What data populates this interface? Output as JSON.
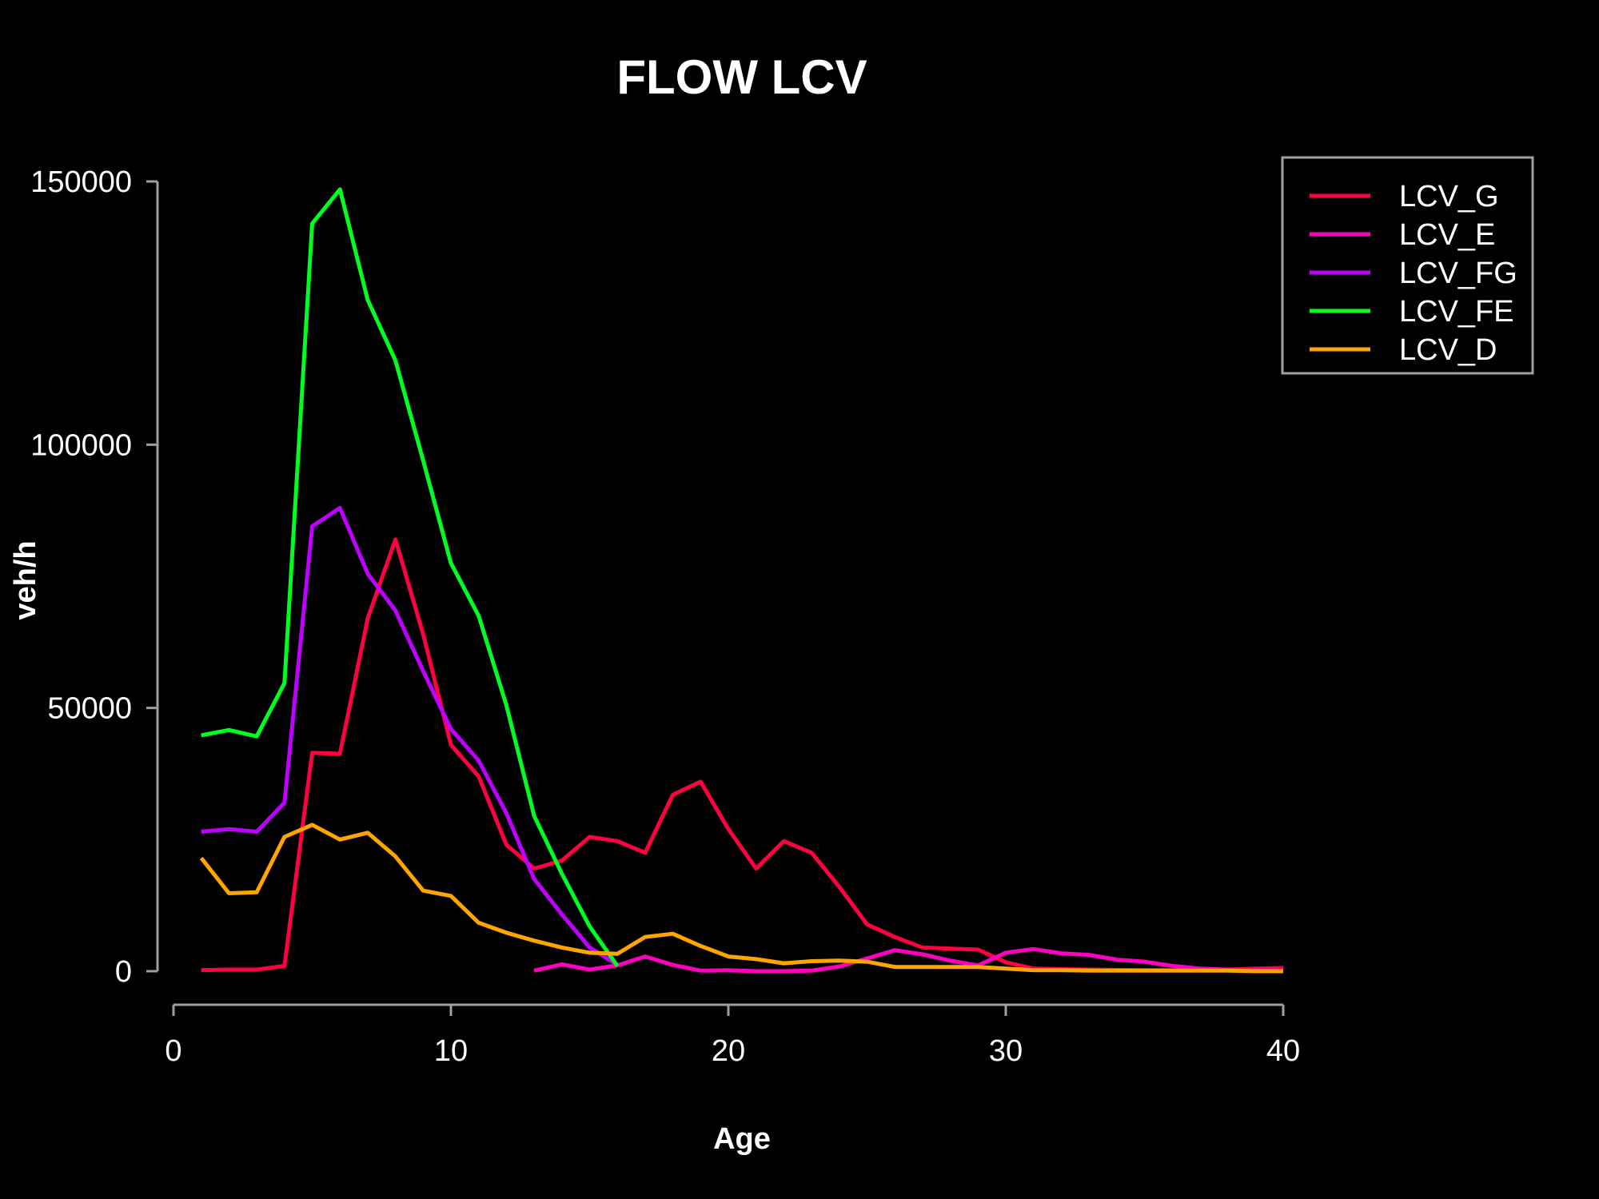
{
  "chart_data": {
    "type": "line",
    "title": "FLOW LCV",
    "xlabel": "Age",
    "ylabel": "veh/h",
    "xlim": [
      0,
      40
    ],
    "ylim": [
      0,
      150000
    ],
    "x_ticks": [
      "0",
      "10",
      "20",
      "30",
      "40"
    ],
    "y_ticks": [
      "0",
      "50000",
      "100000",
      "150000"
    ],
    "grid": false,
    "legend_position": "top-right",
    "background": "#000000",
    "series": [
      {
        "name": "LCV_G",
        "color": "#ff0040",
        "x": [
          1,
          2,
          3,
          4,
          5,
          6,
          7,
          8,
          9,
          10,
          11,
          12,
          13,
          14,
          15,
          16,
          17,
          18,
          19,
          20,
          21,
          22,
          23,
          24,
          25,
          26,
          27,
          28,
          29,
          30,
          31,
          32,
          33,
          34,
          35,
          36,
          37,
          38,
          39,
          40
        ],
        "y": [
          200,
          300,
          300,
          1000,
          41500,
          41300,
          67000,
          82000,
          64000,
          43000,
          37000,
          24000,
          19500,
          21000,
          25500,
          24700,
          22500,
          33500,
          36000,
          27000,
          19500,
          24700,
          22500,
          16000,
          8900,
          6500,
          4500,
          4300,
          4100,
          1700,
          500,
          400,
          300,
          250,
          200,
          200,
          200,
          300,
          500,
          600
        ]
      },
      {
        "name": "LCV_E",
        "color": "#ff00c0",
        "x": [
          13,
          14,
          15,
          16,
          17,
          18,
          19,
          20,
          21,
          22,
          23,
          24,
          25,
          26,
          27,
          28,
          29,
          30,
          31,
          32,
          33,
          34,
          35,
          36,
          37,
          38,
          39,
          40
        ],
        "y": [
          100,
          1300,
          300,
          1100,
          2800,
          1200,
          100,
          200,
          0,
          0,
          100,
          900,
          2400,
          4000,
          3200,
          2000,
          1100,
          3500,
          4200,
          3400,
          3100,
          2200,
          1800,
          1000,
          500,
          300,
          200,
          100
        ]
      },
      {
        "name": "LCV_FG",
        "color": "#c000ff",
        "x": [
          1,
          2,
          3,
          4,
          5,
          6,
          7,
          8,
          9,
          10,
          11,
          12,
          13,
          14,
          15,
          16
        ],
        "y": [
          26500,
          27000,
          26500,
          32000,
          84500,
          88000,
          75500,
          68500,
          57000,
          46000,
          40000,
          30000,
          17500,
          10800,
          4500,
          1200
        ]
      },
      {
        "name": "LCV_FE",
        "color": "#00ff20",
        "x": [
          1,
          2,
          3,
          4,
          5,
          6,
          7,
          8,
          9,
          10,
          11,
          12,
          13,
          14,
          15,
          16
        ],
        "y": [
          44800,
          45800,
          44600,
          54700,
          142000,
          148500,
          127500,
          116000,
          97000,
          77500,
          67500,
          50500,
          29500,
          18500,
          8500,
          1000
        ]
      },
      {
        "name": "LCV_D",
        "color": "#ffa500",
        "x": [
          1,
          2,
          3,
          4,
          5,
          6,
          7,
          8,
          9,
          10,
          11,
          12,
          13,
          14,
          15,
          16,
          17,
          18,
          19,
          20,
          21,
          22,
          23,
          24,
          25,
          26,
          27,
          28,
          29,
          30,
          31,
          32,
          33,
          34,
          35,
          36,
          37,
          38,
          39,
          40
        ],
        "y": [
          21500,
          14800,
          15000,
          25500,
          27800,
          25000,
          26300,
          21800,
          15300,
          14300,
          9200,
          7300,
          5800,
          4500,
          3500,
          3300,
          6500,
          7100,
          4800,
          2800,
          2300,
          1500,
          1900,
          2000,
          1800,
          800,
          800,
          800,
          800,
          500,
          200,
          200,
          100,
          100,
          100,
          100,
          100,
          100,
          0,
          0
        ]
      }
    ]
  }
}
